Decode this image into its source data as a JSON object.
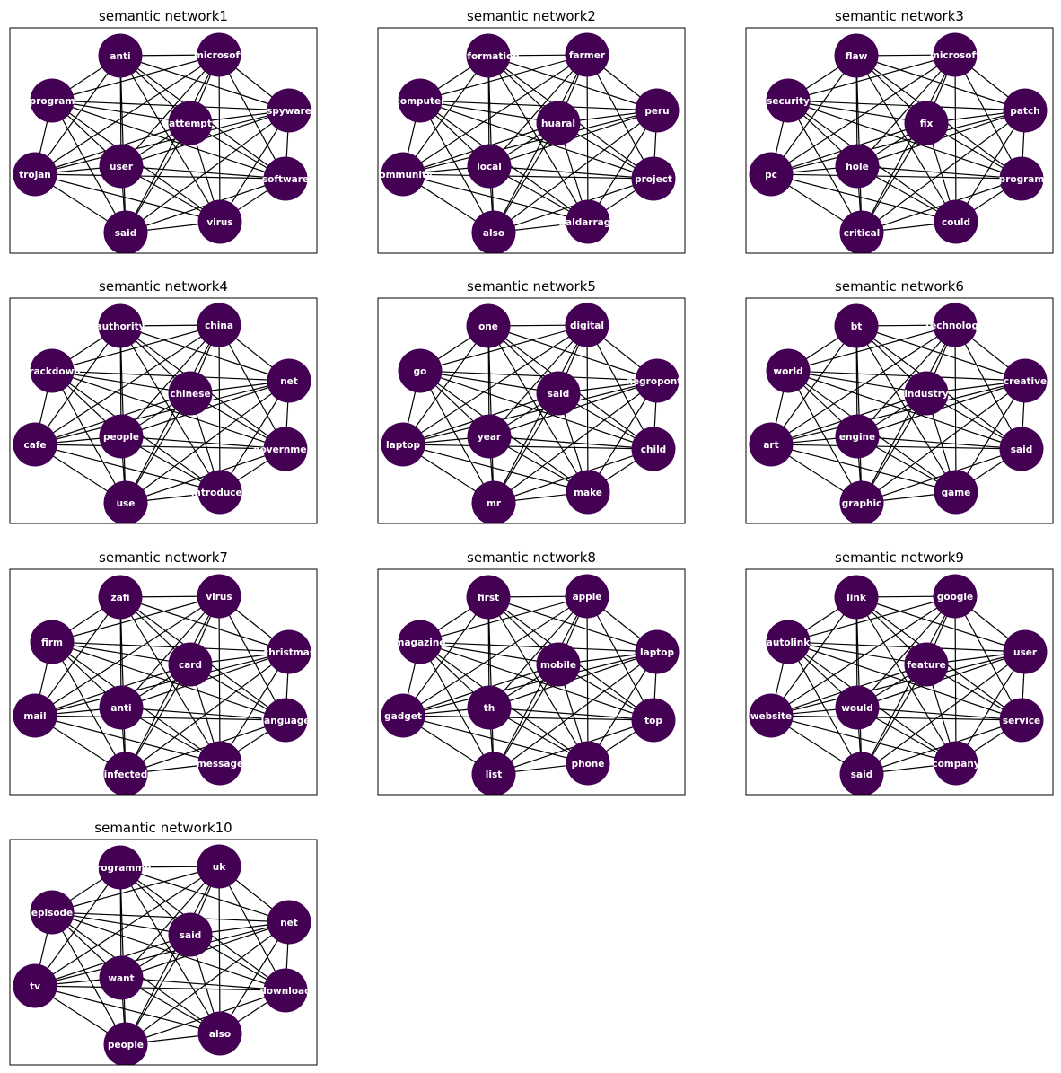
{
  "figure": {
    "node_color": "#440154",
    "edge_color": "#000000",
    "label_color": "#ffffff",
    "edges": "complete",
    "panels": [
      {
        "title": "semantic network1",
        "nodes": [
          "anti",
          "microsoft",
          "program",
          "attempt",
          "spyware",
          "trojan",
          "user",
          "software",
          "said",
          "virus"
        ]
      },
      {
        "title": "semantic network2",
        "nodes": [
          "information",
          "farmer",
          "computer",
          "huaral",
          "peru",
          "community",
          "local",
          "project",
          "also",
          "baldarrago"
        ]
      },
      {
        "title": "semantic network3",
        "nodes": [
          "flaw",
          "microsoft",
          "security",
          "fix",
          "patch",
          "pc",
          "hole",
          "program",
          "critical",
          "could"
        ]
      },
      {
        "title": "semantic network4",
        "nodes": [
          "authority",
          "china",
          "crackdown",
          "chinese",
          "net",
          "cafe",
          "people",
          "government",
          "use",
          "introduced"
        ]
      },
      {
        "title": "semantic network5",
        "nodes": [
          "one",
          "digital",
          "go",
          "said",
          "negroponte",
          "laptop",
          "year",
          "child",
          "mr",
          "make"
        ]
      },
      {
        "title": "semantic network6",
        "nodes": [
          "bt",
          "technology",
          "world",
          "industry",
          "creative",
          "art",
          "engine",
          "said",
          "graphic",
          "game"
        ]
      },
      {
        "title": "semantic network7",
        "nodes": [
          "zafi",
          "virus",
          "firm",
          "card",
          "christmas",
          "mail",
          "anti",
          "language",
          "infected",
          "message"
        ]
      },
      {
        "title": "semantic network8",
        "nodes": [
          "first",
          "apple",
          "magazine",
          "mobile",
          "laptop",
          "gadget",
          "th",
          "top",
          "list",
          "phone"
        ]
      },
      {
        "title": "semantic network9",
        "nodes": [
          "link",
          "google",
          "autolink",
          "feature",
          "user",
          "website",
          "would",
          "service",
          "said",
          "company"
        ]
      },
      {
        "title": "semantic network10",
        "nodes": [
          "programme",
          "uk",
          "episode",
          "said",
          "net",
          "tv",
          "want",
          "download",
          "people",
          "also"
        ]
      }
    ]
  }
}
